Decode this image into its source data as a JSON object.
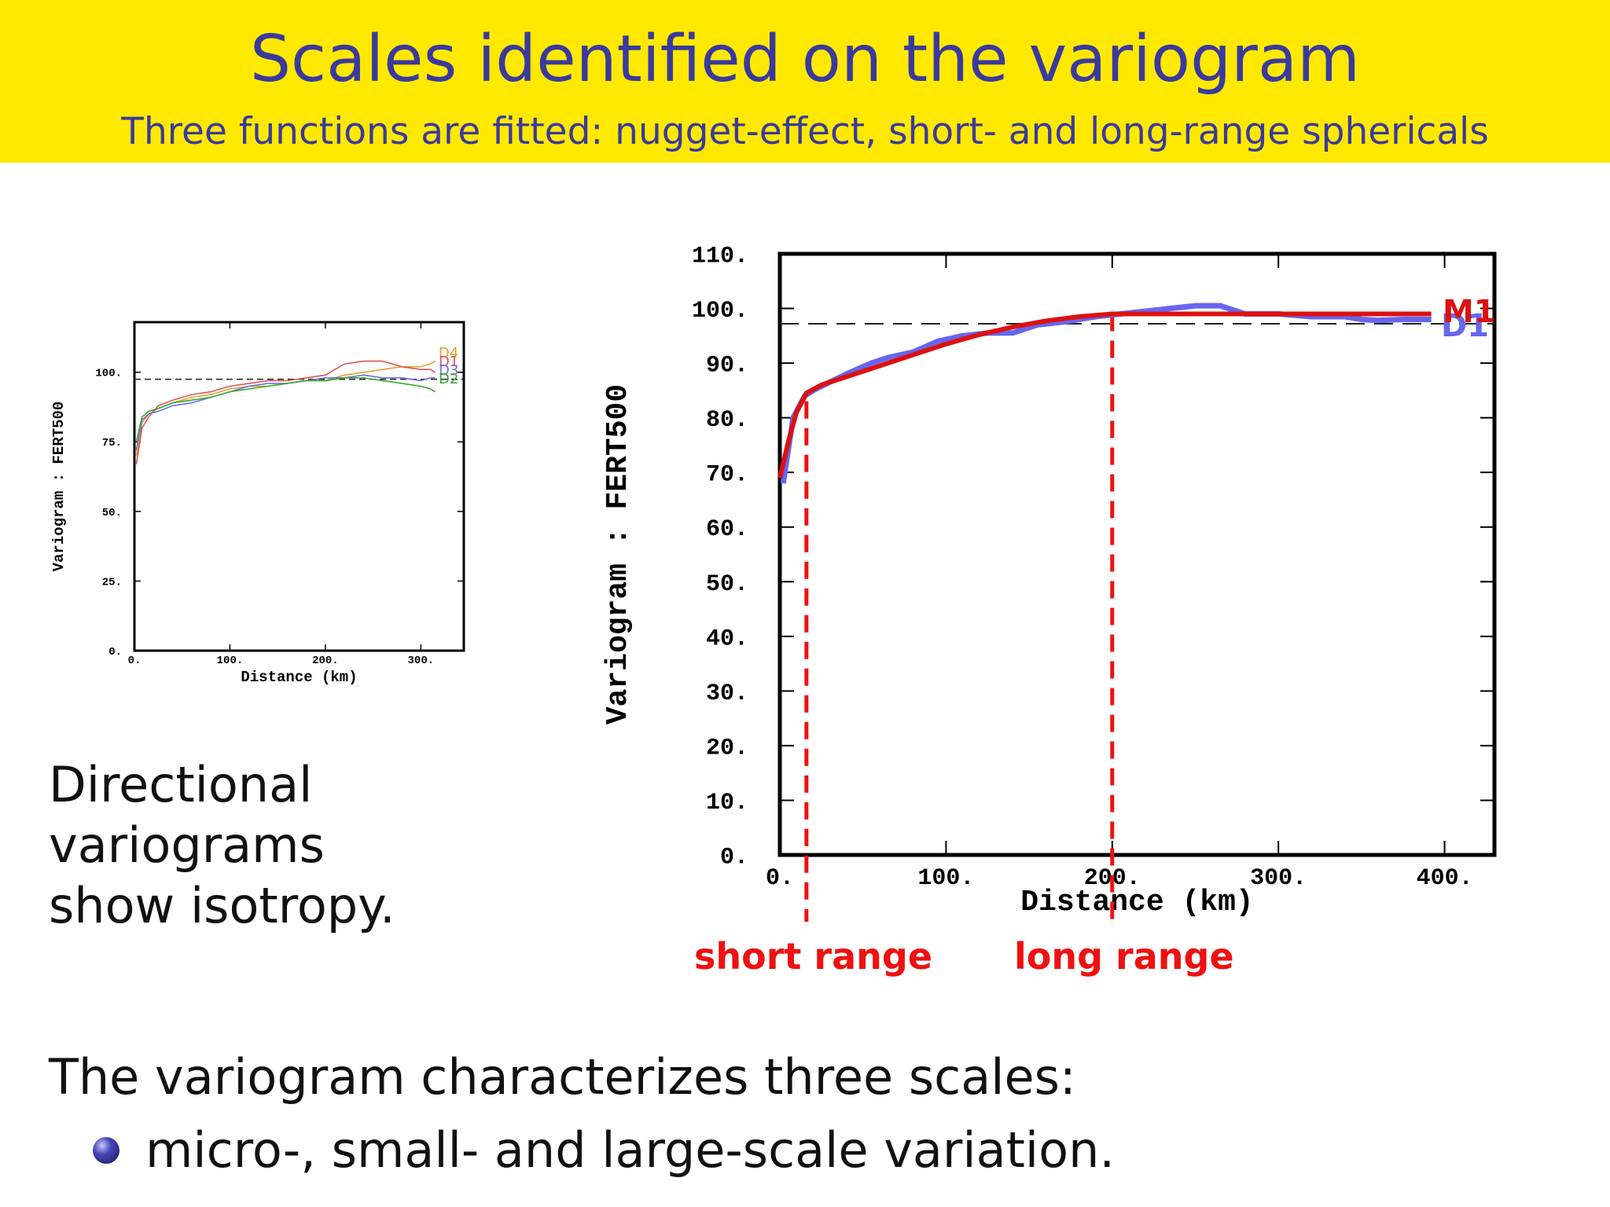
{
  "slide": {
    "title": "Scales identified on the variogram",
    "subtitle": "Three functions are fitted: nugget-effect, short- and long-range sphericals",
    "left_text_lines": [
      "Directional",
      "variograms",
      "show isotropy."
    ],
    "bottom_text": "The variogram characterizes three scales:",
    "bullet_text": "micro-, small- and large-scale variation.",
    "short_range_label": "short range",
    "long_range_label": "long range",
    "colors": {
      "banner": "#ffe900",
      "title": "#3a3a9e",
      "range_annotation": "#ee1111"
    }
  },
  "chart_data": [
    {
      "type": "line",
      "xlabel": "Distance (km)",
      "ylabel": "Variogram : FERT500",
      "xlim": [
        0,
        345
      ],
      "ylim": [
        0,
        118
      ],
      "x_ticks": [
        0,
        100,
        200,
        300
      ],
      "x_tick_labels": [
        "0.",
        "100.",
        "200.",
        "300."
      ],
      "y_ticks": [
        0,
        25,
        50,
        75,
        100
      ],
      "y_tick_labels": [
        "0.",
        "25.",
        "50.",
        "75.",
        "100."
      ],
      "sill": 97.5,
      "series": [
        {
          "name": "D4",
          "color": "#e0a030",
          "x": [
            2,
            8,
            15,
            25,
            40,
            60,
            80,
            100,
            120,
            140,
            160,
            180,
            200,
            220,
            240,
            260,
            280,
            300,
            310,
            315
          ],
          "y": [
            70,
            82,
            85,
            87,
            89,
            91,
            92,
            94,
            95,
            95,
            96,
            97,
            97,
            99,
            100,
            101,
            102,
            102,
            103,
            104
          ]
        },
        {
          "name": "D1",
          "color": "#dd5555",
          "x": [
            2,
            8,
            15,
            25,
            40,
            60,
            80,
            100,
            120,
            140,
            160,
            180,
            200,
            220,
            240,
            260,
            280,
            300,
            310,
            315
          ],
          "y": [
            67,
            80,
            84,
            88,
            90,
            92,
            93,
            95,
            96,
            97,
            97,
            98,
            99,
            103,
            104,
            104,
            102,
            101,
            101,
            100
          ]
        },
        {
          "name": "D3",
          "color": "#7070dd",
          "x": [
            2,
            8,
            15,
            25,
            40,
            60,
            80,
            100,
            120,
            140,
            160,
            180,
            200,
            220,
            240,
            260,
            280,
            300,
            310,
            315
          ],
          "y": [
            72,
            83,
            85,
            86,
            88,
            89,
            91,
            93,
            95,
            96,
            96,
            97,
            98,
            98,
            99,
            98,
            98,
            97,
            98,
            98
          ]
        },
        {
          "name": "D2",
          "color": "#33aa33",
          "x": [
            2,
            8,
            15,
            25,
            40,
            60,
            80,
            100,
            120,
            140,
            160,
            180,
            200,
            220,
            240,
            260,
            280,
            300,
            310,
            315
          ],
          "y": [
            75,
            84,
            86,
            87,
            89,
            90,
            91,
            93,
            94,
            95,
            96,
            97,
            97,
            98,
            98,
            97,
            96,
            95,
            94,
            93
          ]
        }
      ]
    },
    {
      "type": "line",
      "xlabel": "Distance (km)",
      "ylabel": "Variogram : FERT500",
      "xlim": [
        0,
        430
      ],
      "ylim": [
        0,
        110
      ],
      "x_ticks": [
        0,
        100,
        200,
        300,
        400
      ],
      "x_tick_labels": [
        "0.",
        "100.",
        "200.",
        "300.",
        "400."
      ],
      "y_ticks": [
        0,
        10,
        20,
        30,
        40,
        50,
        60,
        70,
        80,
        90,
        100,
        110
      ],
      "y_tick_labels": [
        "0.",
        "10.",
        "20.",
        "30.",
        "40.",
        "50.",
        "60.",
        "70.",
        "80.",
        "90.",
        "100.",
        "110."
      ],
      "sill": 97.2,
      "short_range": 16,
      "long_range": 200,
      "series": [
        {
          "name": "D1",
          "color": "#6666ee",
          "x": [
            2,
            8,
            15,
            20,
            30,
            40,
            55,
            65,
            80,
            95,
            110,
            125,
            140,
            155,
            170,
            190,
            205,
            220,
            235,
            250,
            265,
            280,
            300,
            320,
            340,
            350,
            360,
            375,
            385,
            392
          ],
          "y": [
            68,
            80,
            84,
            85,
            86.5,
            88,
            90,
            91,
            92,
            94,
            95,
            95.5,
            95.5,
            97,
            97.5,
            98.5,
            99,
            99.5,
            100,
            100.5,
            100.5,
            99,
            99,
            98.5,
            98.5,
            98,
            97.8,
            98,
            98,
            98
          ]
        },
        {
          "name": "M1",
          "color": "#dd1111",
          "x": [
            0,
            5,
            10,
            16,
            25,
            40,
            60,
            80,
            100,
            120,
            140,
            160,
            180,
            200,
            250,
            300,
            350,
            392
          ],
          "y": [
            69,
            75.5,
            81,
            84.5,
            86,
            87.5,
            89.5,
            91.5,
            93.5,
            95.2,
            96.6,
            97.7,
            98.5,
            99,
            99,
            99,
            99,
            99
          ]
        }
      ]
    }
  ]
}
